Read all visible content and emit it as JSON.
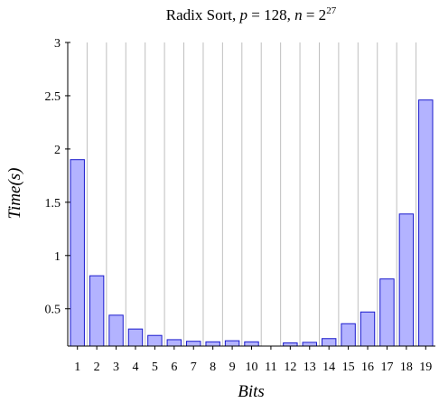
{
  "chart_data": {
    "type": "bar",
    "title": "Radix Sort, p = 128, n = 2^27",
    "title_parts": {
      "prefix": "Radix Sort, ",
      "p_var": "p",
      "p_eq": " = 128, ",
      "n_var": "n",
      "n_eq": " = 2",
      "n_exp": "27"
    },
    "xlabel": "Bits",
    "ylabel": "Time(s)",
    "categories": [
      "1",
      "2",
      "3",
      "4",
      "5",
      "6",
      "7",
      "8",
      "9",
      "10",
      "11",
      "12",
      "13",
      "14",
      "15",
      "16",
      "17",
      "18",
      "19"
    ],
    "values": [
      1.9,
      0.81,
      0.44,
      0.31,
      0.25,
      0.21,
      0.195,
      0.19,
      0.2,
      0.19,
      0.15,
      0.18,
      0.185,
      0.22,
      0.36,
      0.47,
      0.78,
      1.39,
      2.46
    ],
    "ylim": [
      0.15,
      3.0
    ],
    "yticks": [
      0.5,
      1,
      1.5,
      2,
      2.5,
      3
    ],
    "ytick_labels": [
      "0.5",
      "1",
      "1.5",
      "2",
      "2.5",
      "3"
    ],
    "grid": "vertical",
    "bar_fill": "#b3b3ff",
    "bar_stroke": "#1a1acc",
    "grid_color": "#bfbfbf"
  }
}
